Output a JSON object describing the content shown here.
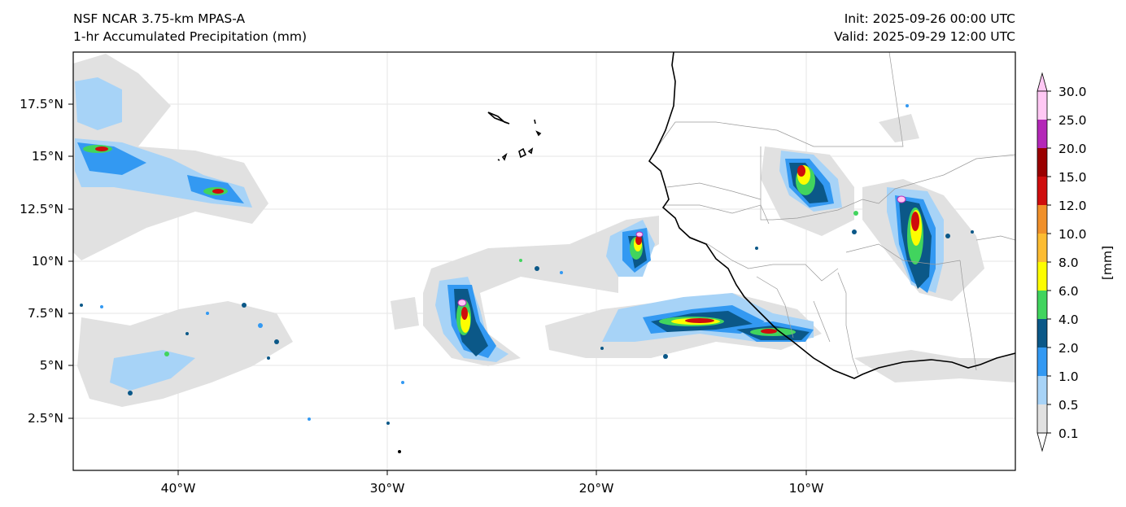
{
  "header": {
    "model": "NSF NCAR 3.75-km MPAS-A",
    "field": "1-hr Accumulated Precipitation (mm)",
    "init": "Init: 2025-09-26 00:00 UTC",
    "valid": "Valid: 2025-09-29 12:00 UTC"
  },
  "axes": {
    "lon_ticks": [
      "40°W",
      "30°W",
      "20°W",
      "10°W"
    ],
    "lat_ticks": [
      "17.5°N",
      "15°N",
      "12.5°N",
      "10°N",
      "7.5°N",
      "5°N",
      "2.5°N"
    ]
  },
  "colorbar": {
    "label": "[mm]",
    "levels": [
      "0.1",
      "0.5",
      "1.0",
      "2.0",
      "4.0",
      "6.0",
      "8.0",
      "10.0",
      "12.0",
      "15.0",
      "20.0",
      "25.0",
      "30.0"
    ],
    "colors": [
      "#e1e1e1",
      "#a7d3f7",
      "#3399f2",
      "#0b5888",
      "#41d45e",
      "#fdfd00",
      "#fcbc32",
      "#f0902a",
      "#cf0d0d",
      "#9a0000",
      "#b428b8",
      "#ffc8f4"
    ]
  },
  "map": {
    "extent_lon": [
      -45,
      0
    ],
    "extent_lat": [
      0,
      20
    ],
    "colors": {
      "ocean": "#ffffff",
      "coast": "#000000",
      "border": "#9a9a9a",
      "grid": "#e4e4e4"
    }
  }
}
